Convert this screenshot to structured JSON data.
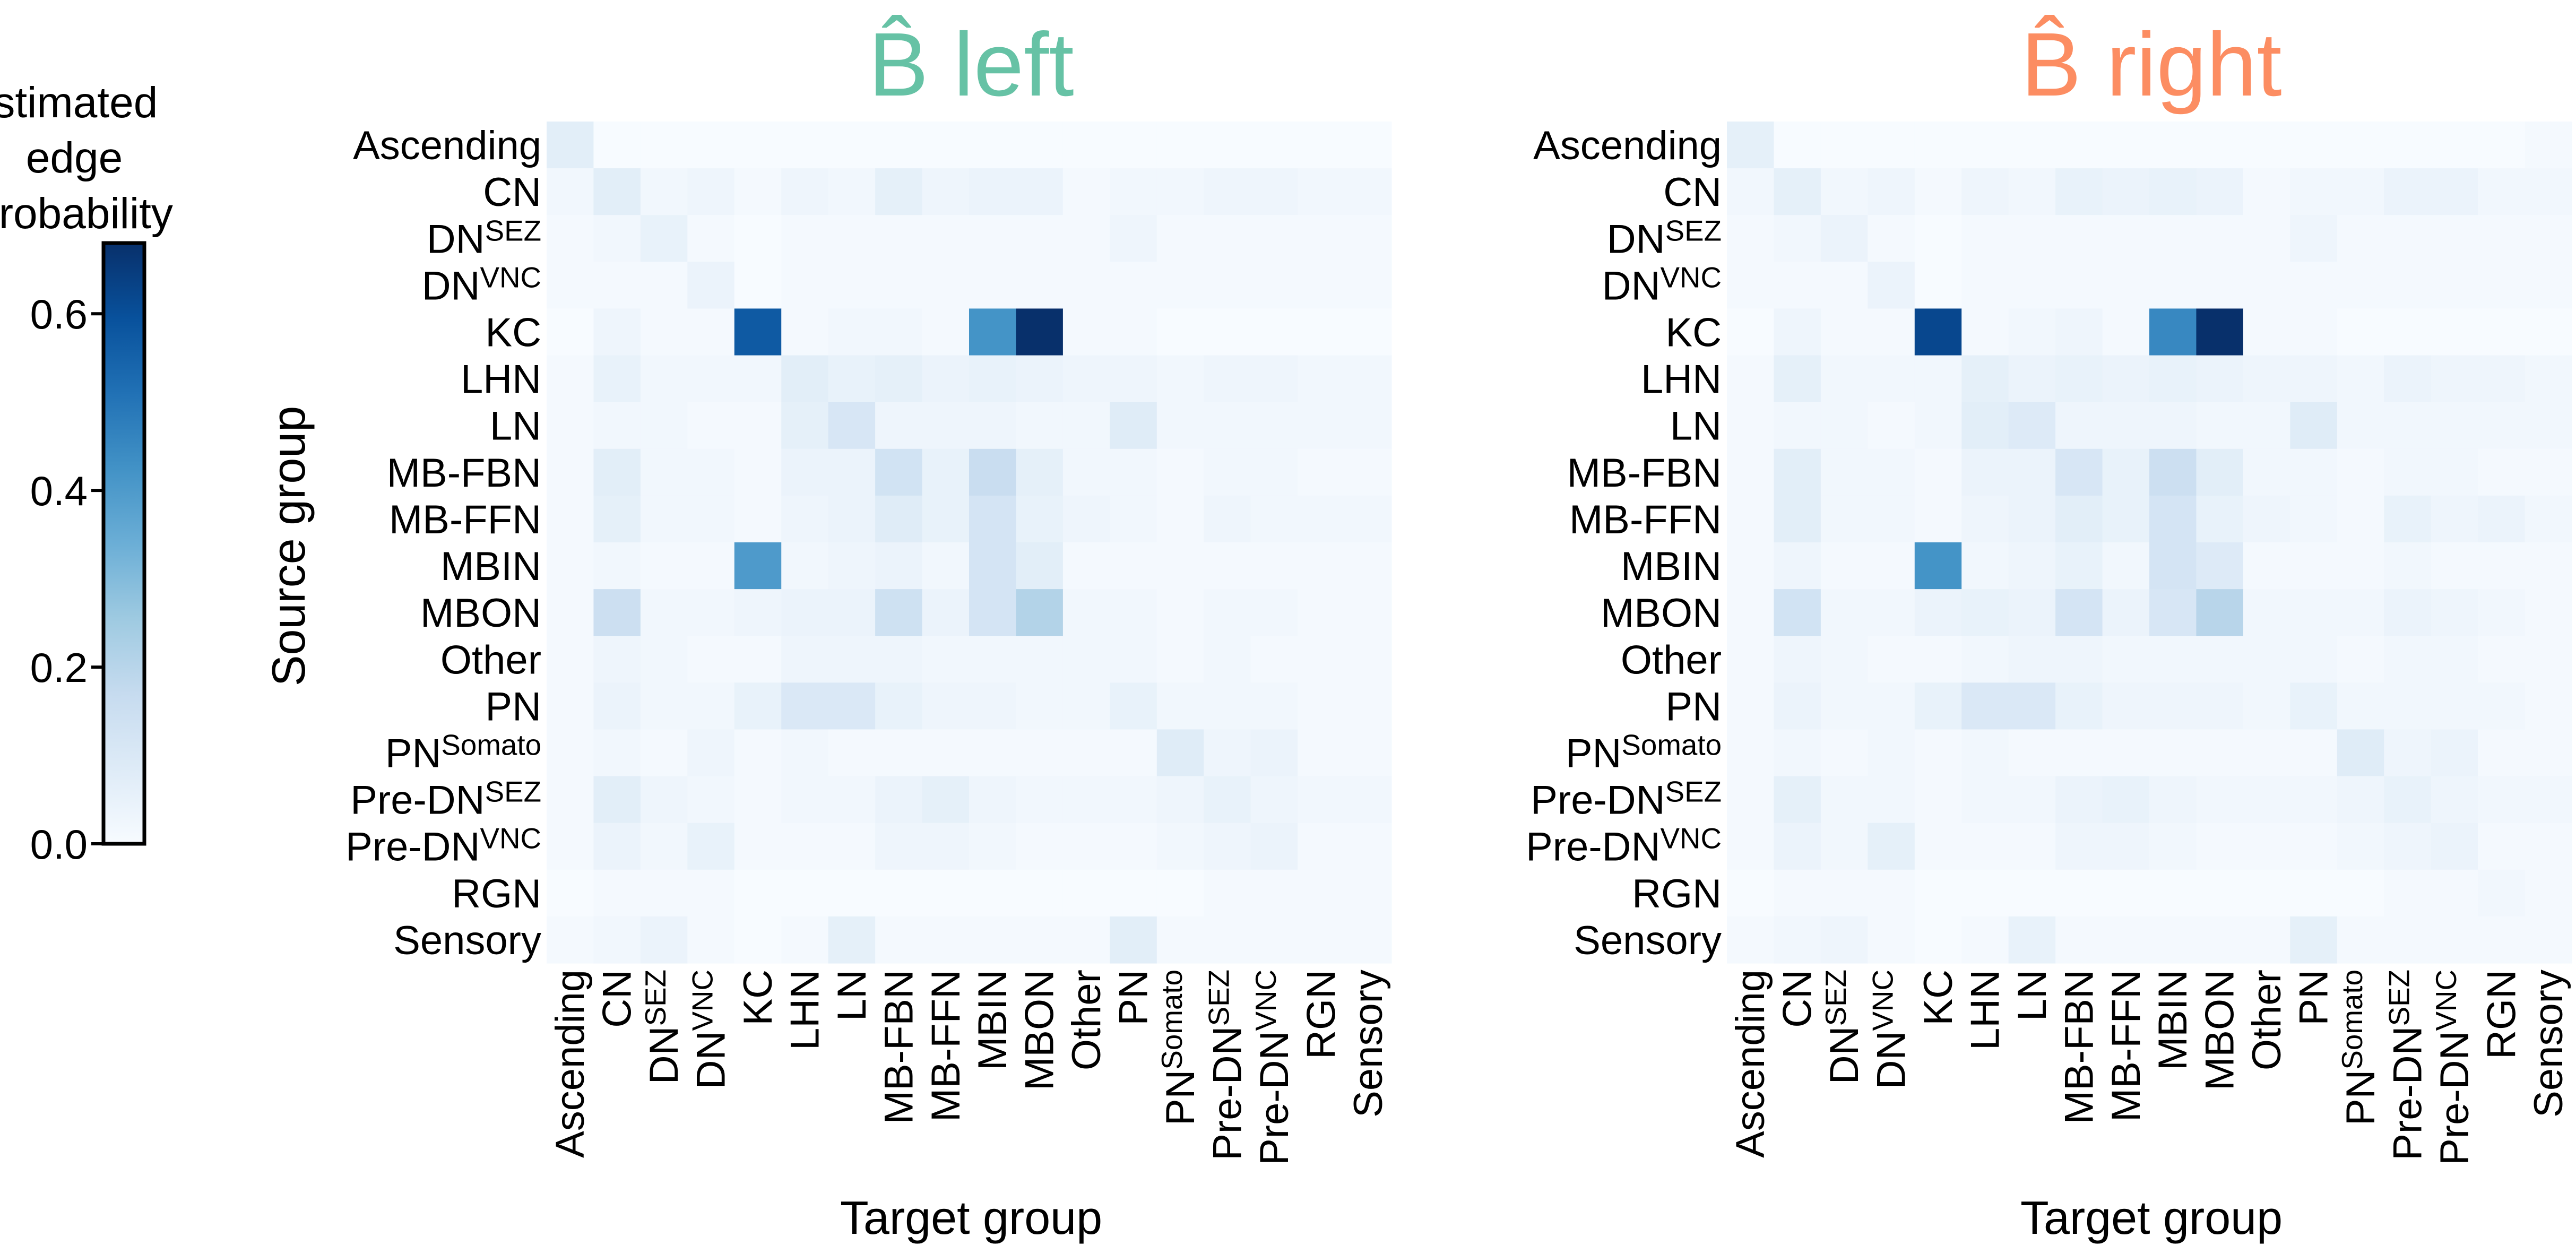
{
  "colorbar": {
    "label_lines": [
      "Estimated",
      "edge",
      "probability"
    ],
    "ticks": [
      0.0,
      0.2,
      0.4,
      0.6
    ],
    "tick_labels": [
      "0.0",
      "0.2",
      "0.4",
      "0.6"
    ],
    "range": [
      0,
      0.68
    ],
    "colormap": "Blues"
  },
  "chart_data": [
    {
      "type": "heatmap",
      "title": "B̂ left",
      "title_color": "#66c2a5",
      "ylabel": "Source group",
      "xlabel": "Target group",
      "rows": [
        "Ascending",
        "CN",
        "DN^SEZ",
        "DN^VNC",
        "KC",
        "LHN",
        "LN",
        "MB-FBN",
        "MB-FFN",
        "MBIN",
        "MBON",
        "Other",
        "PN",
        "PN^Somato",
        "Pre-DN^SEZ",
        "Pre-DN^VNC",
        "RGN",
        "Sensory"
      ],
      "cols": [
        "Ascending",
        "CN",
        "DN^SEZ",
        "DN^VNC",
        "KC",
        "LHN",
        "LN",
        "MB-FBN",
        "MB-FFN",
        "MBIN",
        "MBON",
        "Other",
        "PN",
        "PN^Somato",
        "Pre-DN^SEZ",
        "Pre-DN^VNC",
        "RGN",
        "Sensory"
      ],
      "values": [
        [
          0.07,
          0.0,
          0.0,
          0.0,
          0.0,
          0.0,
          0.0,
          0.0,
          0.0,
          0.0,
          0.0,
          0.0,
          0.0,
          0.0,
          0.0,
          0.0,
          0.0,
          0.0
        ],
        [
          0.02,
          0.07,
          0.02,
          0.03,
          0.01,
          0.03,
          0.02,
          0.06,
          0.03,
          0.04,
          0.04,
          0.01,
          0.02,
          0.02,
          0.03,
          0.03,
          0.02,
          0.02
        ],
        [
          0.01,
          0.02,
          0.05,
          0.01,
          0.0,
          0.01,
          0.01,
          0.01,
          0.01,
          0.01,
          0.01,
          0.01,
          0.03,
          0.01,
          0.01,
          0.01,
          0.01,
          0.01
        ],
        [
          0.01,
          0.01,
          0.01,
          0.04,
          0.0,
          0.01,
          0.01,
          0.01,
          0.01,
          0.01,
          0.01,
          0.01,
          0.01,
          0.01,
          0.01,
          0.01,
          0.01,
          0.01
        ],
        [
          0.0,
          0.03,
          0.01,
          0.01,
          0.57,
          0.01,
          0.02,
          0.02,
          0.01,
          0.42,
          0.68,
          0.01,
          0.01,
          0.0,
          0.0,
          0.0,
          0.0,
          0.0
        ],
        [
          0.01,
          0.05,
          0.02,
          0.02,
          0.02,
          0.07,
          0.05,
          0.06,
          0.04,
          0.05,
          0.04,
          0.03,
          0.03,
          0.02,
          0.03,
          0.03,
          0.02,
          0.02
        ],
        [
          0.01,
          0.02,
          0.02,
          0.01,
          0.01,
          0.06,
          0.11,
          0.03,
          0.03,
          0.03,
          0.02,
          0.02,
          0.08,
          0.02,
          0.02,
          0.02,
          0.02,
          0.02
        ],
        [
          0.01,
          0.07,
          0.02,
          0.02,
          0.01,
          0.04,
          0.04,
          0.13,
          0.05,
          0.16,
          0.06,
          0.02,
          0.02,
          0.01,
          0.02,
          0.02,
          0.01,
          0.01
        ],
        [
          0.01,
          0.06,
          0.02,
          0.02,
          0.01,
          0.03,
          0.04,
          0.08,
          0.05,
          0.12,
          0.05,
          0.03,
          0.02,
          0.01,
          0.03,
          0.02,
          0.02,
          0.02
        ],
        [
          0.01,
          0.02,
          0.01,
          0.01,
          0.4,
          0.02,
          0.03,
          0.04,
          0.02,
          0.12,
          0.07,
          0.01,
          0.01,
          0.01,
          0.01,
          0.01,
          0.01,
          0.01
        ],
        [
          0.01,
          0.15,
          0.02,
          0.02,
          0.03,
          0.04,
          0.04,
          0.14,
          0.04,
          0.12,
          0.21,
          0.02,
          0.02,
          0.01,
          0.02,
          0.02,
          0.01,
          0.01
        ],
        [
          0.01,
          0.03,
          0.02,
          0.01,
          0.01,
          0.03,
          0.03,
          0.03,
          0.02,
          0.02,
          0.02,
          0.02,
          0.02,
          0.01,
          0.02,
          0.01,
          0.01,
          0.01
        ],
        [
          0.01,
          0.04,
          0.02,
          0.02,
          0.05,
          0.1,
          0.1,
          0.05,
          0.03,
          0.03,
          0.02,
          0.02,
          0.05,
          0.02,
          0.02,
          0.02,
          0.01,
          0.01
        ],
        [
          0.01,
          0.02,
          0.01,
          0.03,
          0.01,
          0.02,
          0.01,
          0.01,
          0.01,
          0.01,
          0.01,
          0.01,
          0.01,
          0.08,
          0.03,
          0.04,
          0.01,
          0.01
        ],
        [
          0.01,
          0.07,
          0.03,
          0.02,
          0.01,
          0.02,
          0.02,
          0.04,
          0.06,
          0.03,
          0.02,
          0.02,
          0.02,
          0.03,
          0.05,
          0.03,
          0.02,
          0.02
        ],
        [
          0.01,
          0.04,
          0.02,
          0.05,
          0.01,
          0.01,
          0.01,
          0.03,
          0.03,
          0.02,
          0.01,
          0.01,
          0.01,
          0.02,
          0.03,
          0.04,
          0.01,
          0.01
        ],
        [
          0.0,
          0.01,
          0.01,
          0.01,
          0.0,
          0.0,
          0.0,
          0.0,
          0.0,
          0.0,
          0.0,
          0.0,
          0.0,
          0.0,
          0.01,
          0.01,
          0.01,
          0.01
        ],
        [
          0.01,
          0.02,
          0.04,
          0.01,
          0.0,
          0.01,
          0.06,
          0.01,
          0.01,
          0.01,
          0.01,
          0.01,
          0.07,
          0.01,
          0.01,
          0.01,
          0.01,
          0.01
        ]
      ]
    },
    {
      "type": "heatmap",
      "title": "B̂ right",
      "title_color": "#fc8d62",
      "ylabel": "",
      "xlabel": "Target group",
      "rows": [
        "Ascending",
        "CN",
        "DN^SEZ",
        "DN^VNC",
        "KC",
        "LHN",
        "LN",
        "MB-FBN",
        "MB-FFN",
        "MBIN",
        "MBON",
        "Other",
        "PN",
        "PN^Somato",
        "Pre-DN^SEZ",
        "Pre-DN^VNC",
        "RGN",
        "Sensory"
      ],
      "cols": [
        "Ascending",
        "CN",
        "DN^SEZ",
        "DN^VNC",
        "KC",
        "LHN",
        "LN",
        "MB-FBN",
        "MB-FFN",
        "MBIN",
        "MBON",
        "Other",
        "PN",
        "PN^Somato",
        "Pre-DN^SEZ",
        "Pre-DN^VNC",
        "RGN",
        "Sensory"
      ],
      "values": [
        [
          0.06,
          0.0,
          0.0,
          0.0,
          0.0,
          0.0,
          0.0,
          0.0,
          0.0,
          0.0,
          0.0,
          0.0,
          0.0,
          0.0,
          0.0,
          0.0,
          0.0,
          0.01
        ],
        [
          0.02,
          0.06,
          0.02,
          0.03,
          0.01,
          0.03,
          0.02,
          0.05,
          0.04,
          0.05,
          0.04,
          0.01,
          0.02,
          0.02,
          0.04,
          0.04,
          0.02,
          0.02
        ],
        [
          0.01,
          0.02,
          0.04,
          0.01,
          0.0,
          0.01,
          0.01,
          0.01,
          0.01,
          0.01,
          0.01,
          0.01,
          0.03,
          0.01,
          0.01,
          0.01,
          0.01,
          0.01
        ],
        [
          0.01,
          0.01,
          0.01,
          0.04,
          0.0,
          0.01,
          0.01,
          0.01,
          0.01,
          0.01,
          0.01,
          0.01,
          0.01,
          0.01,
          0.01,
          0.01,
          0.01,
          0.01
        ],
        [
          0.0,
          0.03,
          0.01,
          0.01,
          0.62,
          0.01,
          0.02,
          0.03,
          0.01,
          0.45,
          0.68,
          0.01,
          0.01,
          0.0,
          0.0,
          0.0,
          0.0,
          0.0
        ],
        [
          0.01,
          0.06,
          0.02,
          0.02,
          0.02,
          0.06,
          0.04,
          0.05,
          0.04,
          0.05,
          0.04,
          0.03,
          0.03,
          0.02,
          0.04,
          0.03,
          0.03,
          0.02
        ],
        [
          0.01,
          0.02,
          0.02,
          0.01,
          0.02,
          0.07,
          0.09,
          0.03,
          0.03,
          0.03,
          0.02,
          0.02,
          0.08,
          0.02,
          0.02,
          0.02,
          0.02,
          0.02
        ],
        [
          0.01,
          0.07,
          0.02,
          0.02,
          0.01,
          0.04,
          0.04,
          0.11,
          0.05,
          0.15,
          0.07,
          0.02,
          0.02,
          0.01,
          0.02,
          0.02,
          0.01,
          0.01
        ],
        [
          0.01,
          0.07,
          0.02,
          0.02,
          0.01,
          0.03,
          0.04,
          0.07,
          0.05,
          0.12,
          0.05,
          0.03,
          0.02,
          0.01,
          0.05,
          0.03,
          0.04,
          0.02
        ],
        [
          0.01,
          0.03,
          0.01,
          0.01,
          0.42,
          0.02,
          0.03,
          0.05,
          0.02,
          0.12,
          0.09,
          0.01,
          0.01,
          0.01,
          0.02,
          0.01,
          0.01,
          0.01
        ],
        [
          0.01,
          0.13,
          0.02,
          0.02,
          0.04,
          0.05,
          0.04,
          0.12,
          0.04,
          0.11,
          0.2,
          0.02,
          0.02,
          0.02,
          0.04,
          0.03,
          0.02,
          0.01
        ],
        [
          0.01,
          0.03,
          0.02,
          0.01,
          0.01,
          0.02,
          0.03,
          0.03,
          0.02,
          0.02,
          0.02,
          0.02,
          0.02,
          0.01,
          0.02,
          0.02,
          0.01,
          0.01
        ],
        [
          0.01,
          0.04,
          0.02,
          0.02,
          0.05,
          0.1,
          0.1,
          0.05,
          0.03,
          0.03,
          0.03,
          0.02,
          0.05,
          0.02,
          0.02,
          0.02,
          0.02,
          0.01
        ],
        [
          0.01,
          0.02,
          0.01,
          0.02,
          0.01,
          0.02,
          0.01,
          0.01,
          0.01,
          0.01,
          0.01,
          0.01,
          0.01,
          0.08,
          0.03,
          0.04,
          0.01,
          0.01
        ],
        [
          0.01,
          0.06,
          0.02,
          0.02,
          0.01,
          0.02,
          0.02,
          0.04,
          0.05,
          0.03,
          0.02,
          0.02,
          0.02,
          0.03,
          0.05,
          0.03,
          0.02,
          0.02
        ],
        [
          0.01,
          0.04,
          0.02,
          0.06,
          0.01,
          0.01,
          0.01,
          0.03,
          0.03,
          0.02,
          0.01,
          0.01,
          0.01,
          0.02,
          0.03,
          0.04,
          0.01,
          0.01
        ],
        [
          0.0,
          0.01,
          0.01,
          0.01,
          0.0,
          0.0,
          0.0,
          0.0,
          0.0,
          0.0,
          0.0,
          0.0,
          0.0,
          0.0,
          0.01,
          0.01,
          0.02,
          0.01
        ],
        [
          0.01,
          0.02,
          0.03,
          0.01,
          0.0,
          0.01,
          0.05,
          0.01,
          0.01,
          0.01,
          0.01,
          0.01,
          0.06,
          0.01,
          0.01,
          0.01,
          0.01,
          0.01
        ]
      ]
    }
  ]
}
